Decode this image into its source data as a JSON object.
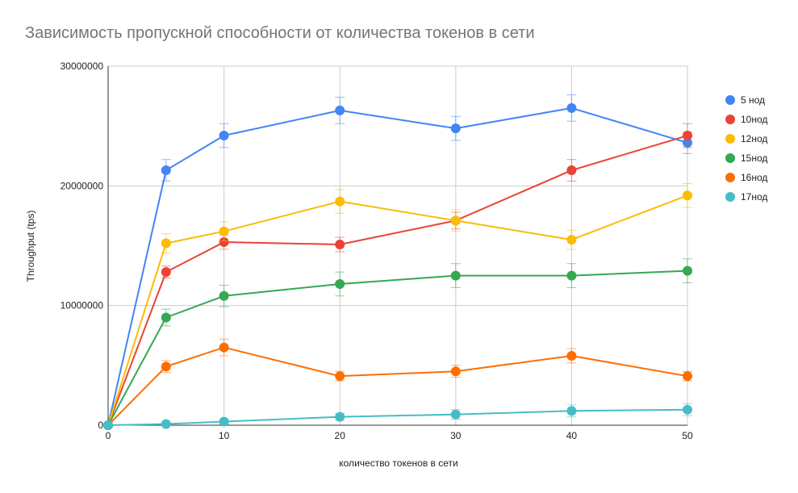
{
  "chart_data": {
    "type": "line",
    "title": "Зависимость пропускной способности от количества токенов в сети",
    "xlabel": "количество токенов в сети",
    "ylabel": "Throughput (tps)",
    "x": [
      0,
      5,
      10,
      20,
      30,
      40,
      50
    ],
    "xlim": [
      0,
      50
    ],
    "ylim": [
      0,
      30000000
    ],
    "xticks": [
      0,
      10,
      20,
      30,
      40,
      50
    ],
    "yticks": [
      0,
      10000000,
      20000000,
      30000000
    ],
    "ytick_labels": [
      "0",
      "10000000",
      "20000000",
      "30000000"
    ],
    "grid": true,
    "legend_position": "right",
    "error_bars": true,
    "series": [
      {
        "name": "5 нод",
        "color": "#4285F4",
        "values": [
          0,
          21300000,
          24200000,
          26300000,
          24800000,
          26500000,
          23600000
        ],
        "errors": [
          0,
          900000,
          1000000,
          1100000,
          1000000,
          1100000,
          900000
        ]
      },
      {
        "name": "10нод",
        "color": "#EA4335",
        "values": [
          0,
          12800000,
          15300000,
          15100000,
          17100000,
          21300000,
          24200000
        ],
        "errors": [
          0,
          500000,
          600000,
          600000,
          700000,
          900000,
          1000000
        ]
      },
      {
        "name": "12нод",
        "color": "#FBBC04",
        "values": [
          0,
          15200000,
          16200000,
          18700000,
          17100000,
          15500000,
          19200000
        ],
        "errors": [
          0,
          800000,
          800000,
          1000000,
          900000,
          800000,
          1000000
        ]
      },
      {
        "name": "15нод",
        "color": "#34A853",
        "values": [
          0,
          9000000,
          10800000,
          11800000,
          12500000,
          12500000,
          12900000
        ],
        "errors": [
          0,
          700000,
          900000,
          1000000,
          1000000,
          1000000,
          1000000
        ]
      },
      {
        "name": "16нод",
        "color": "#FF6D01",
        "values": [
          0,
          4900000,
          6500000,
          4100000,
          4500000,
          5800000,
          4100000
        ],
        "errors": [
          0,
          500000,
          700000,
          400000,
          500000,
          600000,
          400000
        ]
      },
      {
        "name": "17нод",
        "color": "#46BDC6",
        "values": [
          0,
          100000,
          300000,
          700000,
          900000,
          1200000,
          1300000
        ],
        "errors": [
          0,
          100000,
          200000,
          300000,
          400000,
          500000,
          500000
        ]
      }
    ]
  }
}
